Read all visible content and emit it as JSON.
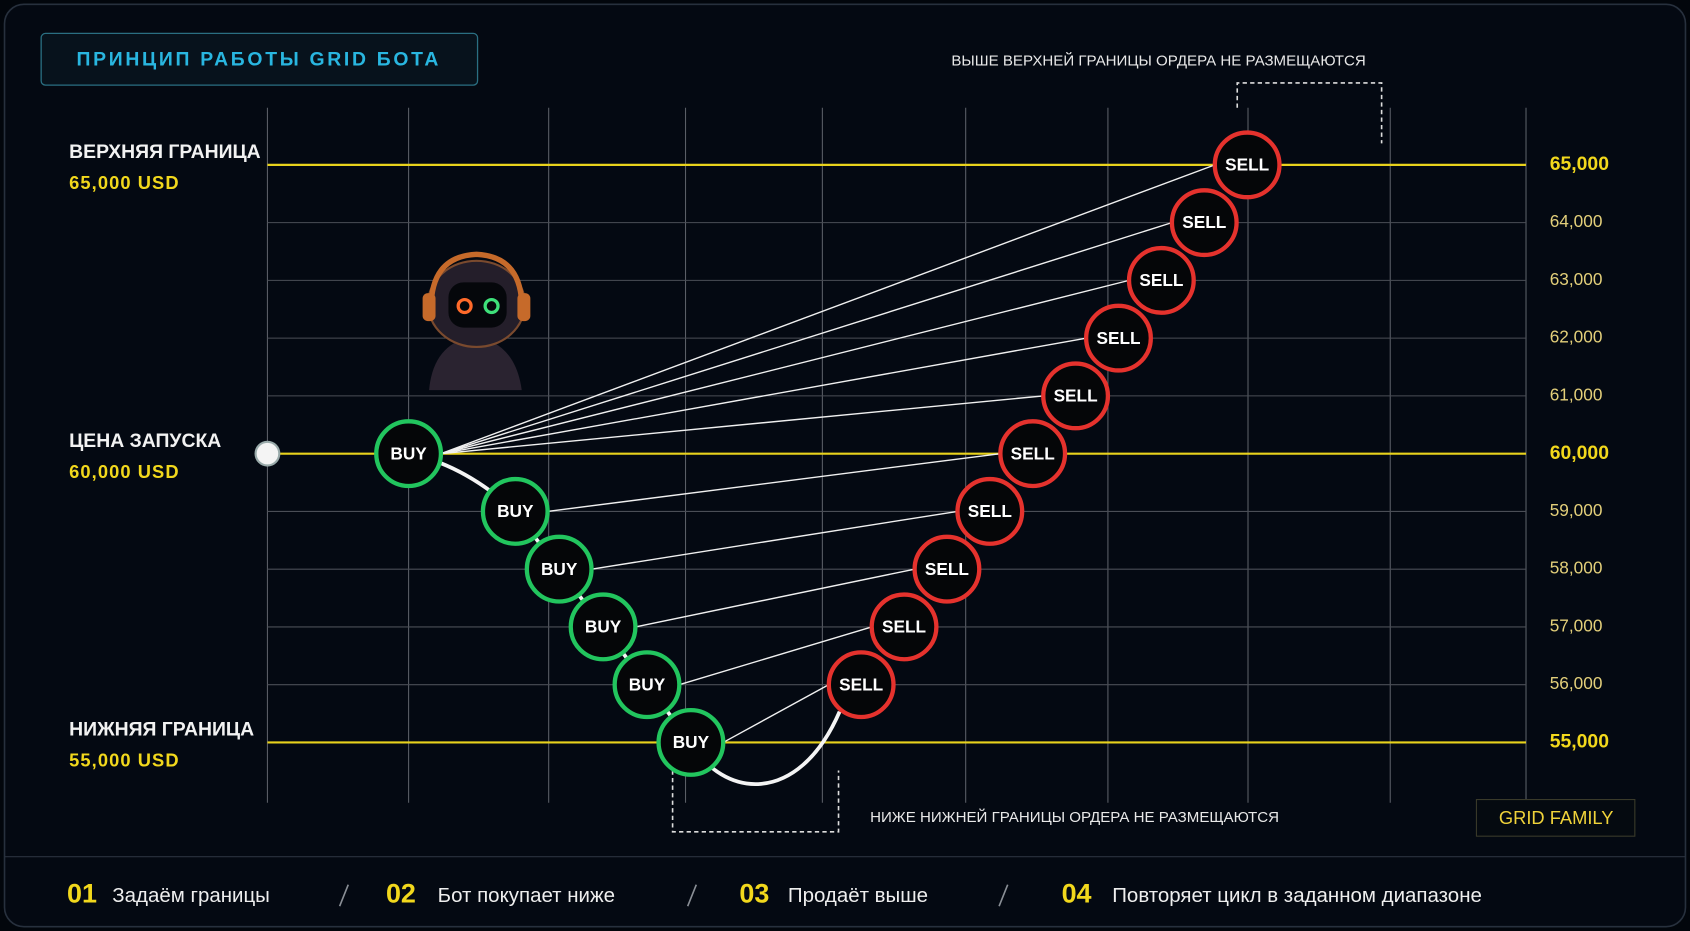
{
  "header": {
    "title": "ПРИНЦИП РАБОТЫ GRID БОТА"
  },
  "notes": {
    "top": "ВЫШЕ ВЕРХНЕЙ ГРАНИЦЫ ОРДЕРА НЕ РАЗМЕЩАЮТСЯ",
    "bottom": "НИЖЕ НИЖНЕЙ ГРАНИЦЫ ОРДЕРА НЕ РАЗМЕЩАЮТСЯ"
  },
  "levels": [
    {
      "name": "ВЕРХНЯЯ ГРАНИЦА",
      "value": 65000,
      "label": "65,000 USD"
    },
    {
      "name": "ЦЕНА ЗАПУСКА",
      "value": 60000,
      "label": "60,000 USD"
    },
    {
      "name": "НИЖНЯЯ ГРАНИЦА",
      "value": 55000,
      "label": "55,000 USD"
    }
  ],
  "price_axis": {
    "ylim": [
      55000,
      65000
    ],
    "yticks": [
      {
        "value": 55000,
        "label": "55,000"
      },
      {
        "value": 56000,
        "label": "56,000"
      },
      {
        "value": 57000,
        "label": "57,000"
      },
      {
        "value": 58000,
        "label": "58,000"
      },
      {
        "value": 59000,
        "label": "59,000"
      },
      {
        "value": 60000,
        "label": "60,000"
      },
      {
        "value": 61000,
        "label": "61,000"
      },
      {
        "value": 62000,
        "label": "62,000"
      },
      {
        "value": 63000,
        "label": "63,000"
      },
      {
        "value": 64000,
        "label": "64,000"
      },
      {
        "value": 65000,
        "label": "65,000"
      }
    ]
  },
  "buy_orders": {
    "label": "BUY",
    "color": "#22c55e",
    "prices": [
      60000,
      59000,
      58000,
      57000,
      56000,
      55000
    ]
  },
  "sell_orders": {
    "label": "SELL",
    "color": "#e5322d",
    "prices": [
      56000,
      57000,
      58000,
      59000,
      60000,
      61000,
      62000,
      63000,
      64000,
      65000
    ]
  },
  "brand": "GRID FAMILY",
  "steps": [
    {
      "number": "01",
      "text": "Задаём границы"
    },
    {
      "number": "02",
      "text": "Бот покупает ниже"
    },
    {
      "number": "03",
      "text": "Продаёт выше"
    },
    {
      "number": "04",
      "text": "Повторяет цикл в заданном диапазоне"
    }
  ]
}
